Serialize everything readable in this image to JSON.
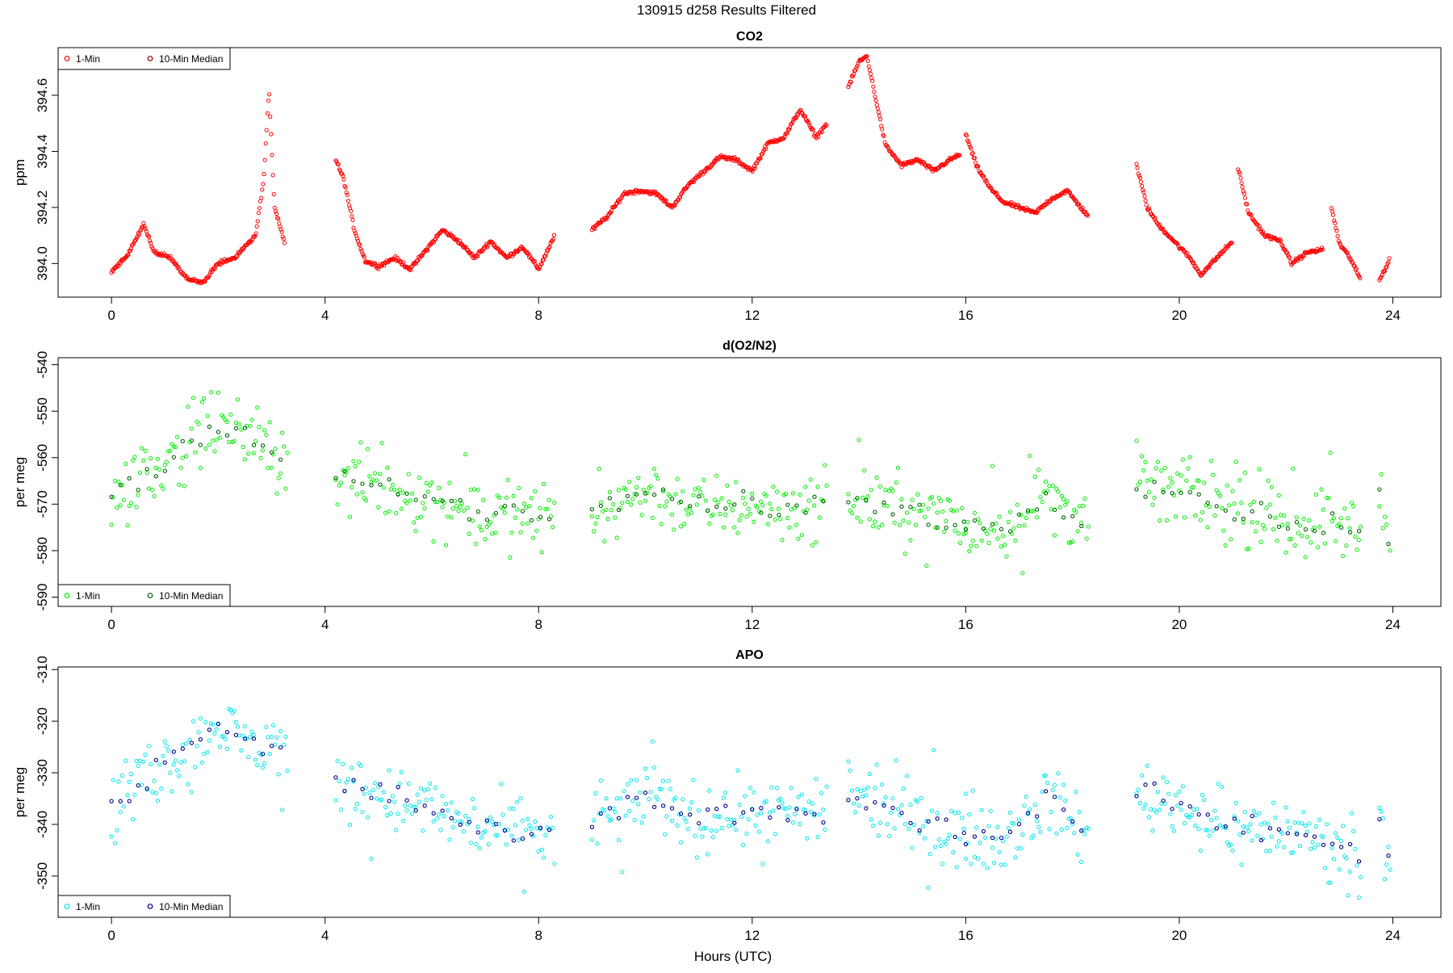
{
  "page_title": "130915   d258   Results Filtered",
  "xlabel": "Hours (UTC)",
  "colors": {
    "co2_1min": "#ff0000",
    "co2_median": "#8b0000",
    "o2_1min": "#00ee00",
    "o2_median": "#006400",
    "apo_1min": "#00e5ee",
    "apo_median": "#00008b"
  },
  "chart_data": [
    {
      "type": "scatter",
      "title": "CO2",
      "ylabel": "ppm",
      "xlim": [
        -1.0,
        24.9
      ],
      "ylim": [
        393.88,
        394.77
      ],
      "x_ticks": [
        0,
        4,
        8,
        12,
        16,
        20,
        24
      ],
      "y_ticks": [
        394.0,
        394.2,
        394.4,
        394.6
      ],
      "y_tick_labels": [
        "394.0",
        "394.2",
        "394.4",
        "394.6"
      ],
      "legend": {
        "position": "top-left",
        "entries": [
          "1-Min",
          "10-Min Median"
        ]
      },
      "series": [
        {
          "name": "1-Min",
          "segments": [
            {
              "x": [
                0.0,
                0.3,
                0.6,
                0.8,
                1.1,
                1.4,
                1.7,
                2.0,
                2.3,
                2.7,
                2.85,
                2.95,
                3.05,
                3.25
              ],
              "y": [
                393.97,
                394.03,
                394.14,
                394.04,
                394.02,
                393.95,
                393.93,
                394.0,
                394.02,
                394.1,
                394.3,
                394.62,
                394.2,
                394.07
              ]
            },
            {
              "x": [
                4.2,
                4.35,
                4.55,
                4.75,
                5.0,
                5.3,
                5.6,
                5.9,
                6.2,
                6.5,
                6.8,
                7.1,
                7.4,
                7.7,
                8.0,
                8.3
              ],
              "y": [
                394.37,
                394.3,
                394.12,
                394.01,
                393.99,
                394.02,
                393.98,
                394.05,
                394.12,
                394.08,
                394.02,
                394.08,
                394.02,
                394.06,
                393.98,
                394.1
              ]
            },
            {
              "x": [
                9.0,
                9.3,
                9.6,
                9.9,
                10.2,
                10.5,
                10.8,
                11.1,
                11.4,
                11.7,
                12.0,
                12.3,
                12.6,
                12.9,
                13.2,
                13.4
              ],
              "y": [
                394.12,
                394.17,
                394.25,
                394.26,
                394.25,
                394.2,
                394.28,
                394.33,
                394.38,
                394.37,
                394.33,
                394.43,
                394.45,
                394.55,
                394.45,
                394.5
              ]
            },
            {
              "x": [
                13.8,
                14.0,
                14.15,
                14.3,
                14.5,
                14.8,
                15.1,
                15.4,
                15.7,
                15.9
              ],
              "y": [
                394.63,
                394.72,
                394.74,
                394.6,
                394.42,
                394.35,
                394.37,
                394.33,
                394.37,
                394.39
              ]
            },
            {
              "x": [
                16.0,
                16.2,
                16.45,
                16.7,
                17.0,
                17.3,
                17.6,
                17.9,
                18.2,
                18.3
              ],
              "y": [
                394.46,
                394.35,
                394.27,
                394.22,
                394.2,
                394.18,
                394.23,
                394.26,
                394.19,
                394.17
              ]
            },
            {
              "x": [
                19.2,
                19.4,
                19.6,
                19.8,
                20.0,
                20.2,
                20.4,
                20.6,
                20.8,
                21.0
              ],
              "y": [
                394.35,
                394.2,
                394.14,
                394.1,
                394.06,
                394.02,
                393.96,
                394.0,
                394.04,
                394.08
              ]
            },
            {
              "x": [
                21.1,
                21.3,
                21.6,
                21.9,
                22.1,
                22.4,
                22.7
              ],
              "y": [
                394.34,
                394.18,
                394.1,
                394.08,
                394.0,
                394.04,
                394.05
              ]
            },
            {
              "x": [
                22.85,
                23.0,
                23.2,
                23.4
              ],
              "y": [
                394.2,
                394.07,
                394.02,
                393.94
              ]
            },
            {
              "x": [
                23.75,
                23.95
              ],
              "y": [
                393.94,
                394.02
              ]
            }
          ]
        },
        {
          "name": "10-Min Median",
          "segments": []
        }
      ]
    },
    {
      "type": "scatter",
      "title": "d(O2/N2)",
      "ylabel": "per meg",
      "xlim": [
        -1.0,
        24.9
      ],
      "ylim": [
        -592,
        -538.5
      ],
      "x_ticks": [
        0,
        4,
        8,
        12,
        16,
        20,
        24
      ],
      "y_ticks": [
        -590,
        -580,
        -570,
        -560,
        -550,
        -540
      ],
      "y_tick_labels": [
        "-590",
        "-580",
        "-570",
        "-560",
        "-550",
        "-540"
      ],
      "legend": {
        "position": "bottom-left",
        "entries": [
          "1-Min",
          "10-Min Median"
        ]
      },
      "series": [
        {
          "name": "1-Min",
          "segments": [
            {
              "x": [
                0.0,
                0.5,
                1.0,
                1.5,
                2.0,
                2.5,
                3.0,
                3.3
              ],
              "y": [
                -568,
                -565,
                -560,
                -556,
                -553,
                -555,
                -559,
                -560
              ]
            },
            {
              "x": [
                4.2,
                5.0,
                6.0,
                7.0,
                8.0,
                8.3
              ],
              "y": [
                -565,
                -566,
                -569,
                -572,
                -573,
                -572
              ]
            },
            {
              "x": [
                9.0,
                10.0,
                11.0,
                12.0,
                13.0,
                13.4
              ],
              "y": [
                -572,
                -567,
                -571,
                -570,
                -571,
                -570
              ]
            },
            {
              "x": [
                13.8,
                14.5,
                15.5,
                16.0
              ],
              "y": [
                -569,
                -570,
                -573,
                -574
              ]
            },
            {
              "x": [
                16.0,
                16.8,
                17.5,
                18.3
              ],
              "y": [
                -576,
                -574,
                -568,
                -574
              ]
            },
            {
              "x": [
                19.2,
                20.0,
                21.0,
                22.0,
                23.0,
                23.4
              ],
              "y": [
                -565,
                -567,
                -571,
                -574,
                -574,
                -577
              ]
            },
            {
              "x": [
                23.75,
                23.95
              ],
              "y": [
                -569,
                -580
              ]
            }
          ]
        },
        {
          "name": "10-Min Median",
          "segments": [
            {
              "x": [
                0.0,
                0.5,
                1.0,
                1.5,
                2.0,
                2.5,
                3.0,
                3.3
              ],
              "y": [
                -568,
                -565,
                -560,
                -556,
                -553,
                -555,
                -559,
                -560
              ]
            },
            {
              "x": [
                4.2,
                5.0,
                6.0,
                7.0,
                8.0,
                8.3
              ],
              "y": [
                -565,
                -566,
                -569,
                -572,
                -573,
                -572
              ]
            },
            {
              "x": [
                9.0,
                10.0,
                11.0,
                12.0,
                13.0,
                13.4
              ],
              "y": [
                -572,
                -567,
                -571,
                -570,
                -571,
                -570
              ]
            },
            {
              "x": [
                13.8,
                14.5,
                15.5,
                16.0
              ],
              "y": [
                -569,
                -570,
                -573,
                -574
              ]
            },
            {
              "x": [
                16.0,
                16.8,
                17.5,
                18.3
              ],
              "y": [
                -576,
                -574,
                -568,
                -574
              ]
            },
            {
              "x": [
                19.2,
                20.0,
                21.0,
                22.0,
                23.0,
                23.4
              ],
              "y": [
                -565,
                -567,
                -571,
                -574,
                -574,
                -577
              ]
            },
            {
              "x": [
                23.75,
                23.95
              ],
              "y": [
                -569,
                -580
              ]
            }
          ]
        }
      ]
    },
    {
      "type": "scatter",
      "title": "APO",
      "ylabel": "per meg",
      "xlim": [
        -1.0,
        24.9
      ],
      "ylim": [
        -358,
        -309.5
      ],
      "x_ticks": [
        0,
        4,
        8,
        12,
        16,
        20,
        24
      ],
      "y_ticks": [
        -350,
        -340,
        -330,
        -320,
        -310
      ],
      "y_tick_labels": [
        "-350",
        "-340",
        "-330",
        "-320",
        "-310"
      ],
      "legend": {
        "position": "bottom-left",
        "entries": [
          "1-Min",
          "10-Min Median"
        ]
      },
      "series": [
        {
          "name": "1-Min",
          "segments": [
            {
              "x": [
                0.0,
                0.5,
                1.0,
                1.5,
                2.0,
                2.5,
                3.0,
                3.3
              ],
              "y": [
                -336,
                -332,
                -328,
                -325,
                -321,
                -324,
                -326,
                -326
              ]
            },
            {
              "x": [
                4.2,
                5.0,
                6.0,
                7.0,
                8.0,
                8.3
              ],
              "y": [
                -332,
                -334,
                -337,
                -341,
                -342,
                -341
              ]
            },
            {
              "x": [
                9.0,
                10.0,
                11.0,
                12.0,
                13.0,
                13.4
              ],
              "y": [
                -341,
                -334,
                -339,
                -337,
                -339,
                -337
              ]
            },
            {
              "x": [
                13.8,
                14.5,
                15.5,
                16.0
              ],
              "y": [
                -334,
                -337,
                -340,
                -342
              ]
            },
            {
              "x": [
                16.0,
                16.8,
                17.5,
                18.3
              ],
              "y": [
                -342,
                -342,
                -335,
                -342
              ]
            },
            {
              "x": [
                19.2,
                20.0,
                21.0,
                22.0,
                23.0,
                23.4
              ],
              "y": [
                -334,
                -336,
                -341,
                -341,
                -344,
                -346
              ]
            },
            {
              "x": [
                23.75,
                23.95
              ],
              "y": [
                -338,
                -348
              ]
            }
          ]
        },
        {
          "name": "10-Min Median",
          "segments": [
            {
              "x": [
                0.0,
                0.5,
                1.0,
                1.5,
                2.0,
                2.5,
                3.0,
                3.3
              ],
              "y": [
                -336,
                -332,
                -328,
                -325,
                -321,
                -324,
                -326,
                -326
              ]
            },
            {
              "x": [
                4.2,
                5.0,
                6.0,
                7.0,
                8.0,
                8.3
              ],
              "y": [
                -332,
                -334,
                -337,
                -341,
                -342,
                -341
              ]
            },
            {
              "x": [
                9.0,
                10.0,
                11.0,
                12.0,
                13.0,
                13.4
              ],
              "y": [
                -341,
                -334,
                -339,
                -337,
                -339,
                -337
              ]
            },
            {
              "x": [
                13.8,
                14.5,
                15.5,
                16.0
              ],
              "y": [
                -334,
                -337,
                -340,
                -342
              ]
            },
            {
              "x": [
                16.0,
                16.8,
                17.5,
                18.3
              ],
              "y": [
                -342,
                -342,
                -335,
                -342
              ]
            },
            {
              "x": [
                19.2,
                20.0,
                21.0,
                22.0,
                23.0,
                23.4
              ],
              "y": [
                -334,
                -336,
                -341,
                -341,
                -344,
                -346
              ]
            },
            {
              "x": [
                23.75,
                23.95
              ],
              "y": [
                -338,
                -348
              ]
            }
          ]
        }
      ]
    }
  ]
}
